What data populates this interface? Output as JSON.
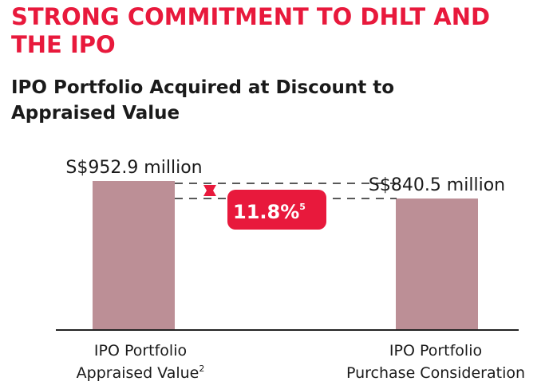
{
  "header": {
    "title_line1": "STRONG COMMITMENT TO DHLT AND",
    "title_line2": "THE IPO",
    "subtitle_line1": "IPO Portfolio Acquired at Discount to",
    "subtitle_line2": "Appraised Value"
  },
  "chart_data": {
    "type": "bar",
    "title": "IPO Portfolio Acquired at Discount to Appraised Value",
    "unit": "S$ million",
    "categories": [
      {
        "line1": "IPO Portfolio",
        "line2": "Appraised Value",
        "footnote": "2"
      },
      {
        "line1": "IPO Portfolio",
        "line2": "Purchase Consideration",
        "footnote": ""
      }
    ],
    "values": [
      952.9,
      840.5
    ],
    "value_labels": [
      "S$952.9 million",
      "S$840.5 million"
    ],
    "discount_label": "11.8%",
    "discount_footnote": "5",
    "ylim": [
      0,
      952.9
    ],
    "xlabel": "",
    "ylabel": "",
    "colors": {
      "bar": "#bc8f96",
      "accent": "#e8193c",
      "axis": "#222222"
    }
  }
}
